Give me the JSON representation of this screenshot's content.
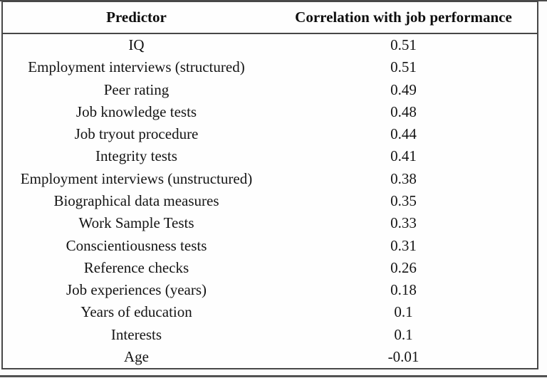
{
  "table": {
    "columns": [
      "Predictor",
      "Correlation with job performance"
    ],
    "rows": [
      {
        "predictor": "IQ",
        "correlation": "0.51"
      },
      {
        "predictor": "Employment interviews (structured)",
        "correlation": "0.51"
      },
      {
        "predictor": "Peer rating",
        "correlation": "0.49"
      },
      {
        "predictor": "Job knowledge tests",
        "correlation": "0.48"
      },
      {
        "predictor": "Job tryout procedure",
        "correlation": "0.44"
      },
      {
        "predictor": "Integrity tests",
        "correlation": "0.41"
      },
      {
        "predictor": "Employment interviews (unstructured)",
        "correlation": "0.38"
      },
      {
        "predictor": "Biographical data measures",
        "correlation": "0.35"
      },
      {
        "predictor": "Work Sample Tests",
        "correlation": "0.33"
      },
      {
        "predictor": "Conscientiousness tests",
        "correlation": "0.31"
      },
      {
        "predictor": "Reference checks",
        "correlation": "0.26"
      },
      {
        "predictor": "Job experiences (years)",
        "correlation": "0.18"
      },
      {
        "predictor": "Years of education",
        "correlation": "0.1"
      },
      {
        "predictor": "Interests",
        "correlation": "0.1"
      },
      {
        "predictor": "Age",
        "correlation": "-0.01"
      }
    ]
  },
  "chart_data": {
    "type": "table",
    "title": "",
    "columns": [
      "Predictor",
      "Correlation with job performance"
    ],
    "rows": [
      [
        "IQ",
        0.51
      ],
      [
        "Employment interviews (structured)",
        0.51
      ],
      [
        "Peer rating",
        0.49
      ],
      [
        "Job knowledge tests",
        0.48
      ],
      [
        "Job tryout procedure",
        0.44
      ],
      [
        "Integrity tests",
        0.41
      ],
      [
        "Employment interviews (unstructured)",
        0.38
      ],
      [
        "Biographical data measures",
        0.35
      ],
      [
        "Work Sample Tests",
        0.33
      ],
      [
        "Conscientiousness tests",
        0.31
      ],
      [
        "Reference checks",
        0.26
      ],
      [
        "Job experiences (years)",
        0.18
      ],
      [
        "Years of education",
        0.1
      ],
      [
        "Interests",
        0.1
      ],
      [
        "Age",
        -0.01
      ]
    ]
  },
  "colors": {
    "border": "#474747",
    "text": "#141414",
    "background": "#ffffff"
  }
}
